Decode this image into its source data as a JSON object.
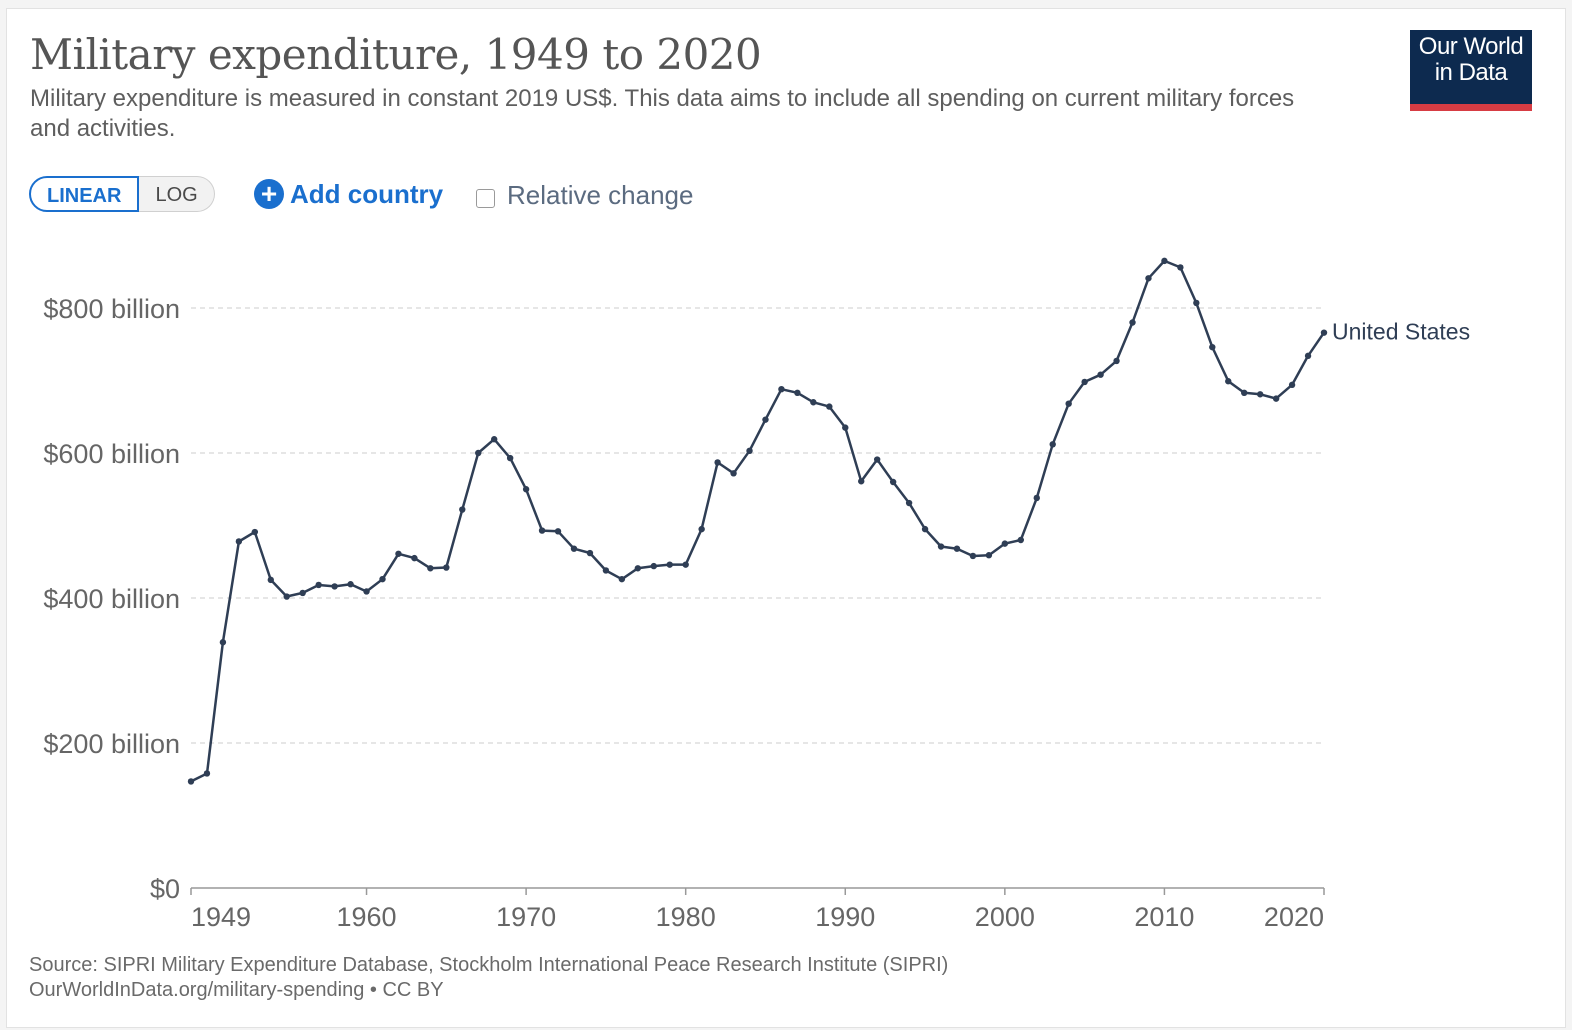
{
  "title": "Military expenditure, 1949 to 2020",
  "subtitle": "Military expenditure is measured in constant 2019 US$. This data aims to include all spending on current military forces and activities.",
  "logo": {
    "line1": "Our World",
    "line2": "in Data"
  },
  "controls": {
    "linear_label": "LINEAR",
    "log_label": "LOG",
    "add_country_label": "Add country",
    "relative_change_label": "Relative change"
  },
  "footer": {
    "source": "Source: SIPRI Military Expenditure Database, Stockholm International Peace Research Institute (SIPRI)",
    "url_license": "OurWorldInData.org/military-spending • CC BY"
  },
  "colors": {
    "series": "#2f3e55",
    "accent": "#1a6fce",
    "logo_bg": "#0d2a4f",
    "logo_stripe": "#d73c43"
  },
  "chart_data": {
    "type": "line",
    "title": "Military expenditure, 1949 to 2020",
    "xlabel": "",
    "ylabel": "",
    "xlim": [
      1949,
      2020
    ],
    "ylim": [
      0,
      800
    ],
    "y_ticks": [
      0,
      200,
      400,
      600,
      800
    ],
    "y_tick_labels": [
      "$0",
      "$200 billion",
      "$400 billion",
      "$600 billion",
      "$800 billion"
    ],
    "x_ticks": [
      1949,
      1960,
      1970,
      1980,
      1990,
      2000,
      2010,
      2020
    ],
    "x_tick_labels": [
      "1949",
      "1960",
      "1970",
      "1980",
      "1990",
      "2000",
      "2010",
      "2020"
    ],
    "grid": "horizontal dashed",
    "legend": "line-end label",
    "series": [
      {
        "name": "United States",
        "x": [
          1949,
          1950,
          1951,
          1952,
          1953,
          1954,
          1955,
          1956,
          1957,
          1958,
          1959,
          1960,
          1961,
          1962,
          1963,
          1964,
          1965,
          1966,
          1967,
          1968,
          1969,
          1970,
          1971,
          1972,
          1973,
          1974,
          1975,
          1976,
          1977,
          1978,
          1979,
          1980,
          1981,
          1982,
          1983,
          1984,
          1985,
          1986,
          1987,
          1988,
          1989,
          1990,
          1991,
          1992,
          1993,
          1994,
          1995,
          1996,
          1997,
          1998,
          1999,
          2000,
          2001,
          2002,
          2003,
          2004,
          2005,
          2006,
          2007,
          2008,
          2009,
          2010,
          2011,
          2012,
          2013,
          2014,
          2015,
          2016,
          2017,
          2018,
          2019,
          2020
        ],
        "values": [
          147,
          158,
          339,
          478,
          491,
          425,
          402,
          407,
          418,
          416,
          419,
          409,
          426,
          461,
          455,
          441,
          442,
          522,
          600,
          619,
          593,
          550,
          493,
          492,
          468,
          462,
          438,
          426,
          441,
          444,
          446,
          446,
          495,
          587,
          572,
          603,
          646,
          688,
          683,
          670,
          664,
          635,
          561,
          591,
          560,
          531,
          495,
          471,
          468,
          458,
          459,
          475,
          480,
          538,
          612,
          668,
          698,
          708,
          727,
          780,
          841,
          865,
          856,
          807,
          746,
          699,
          683,
          681,
          675,
          694,
          734,
          766
        ]
      }
    ]
  }
}
